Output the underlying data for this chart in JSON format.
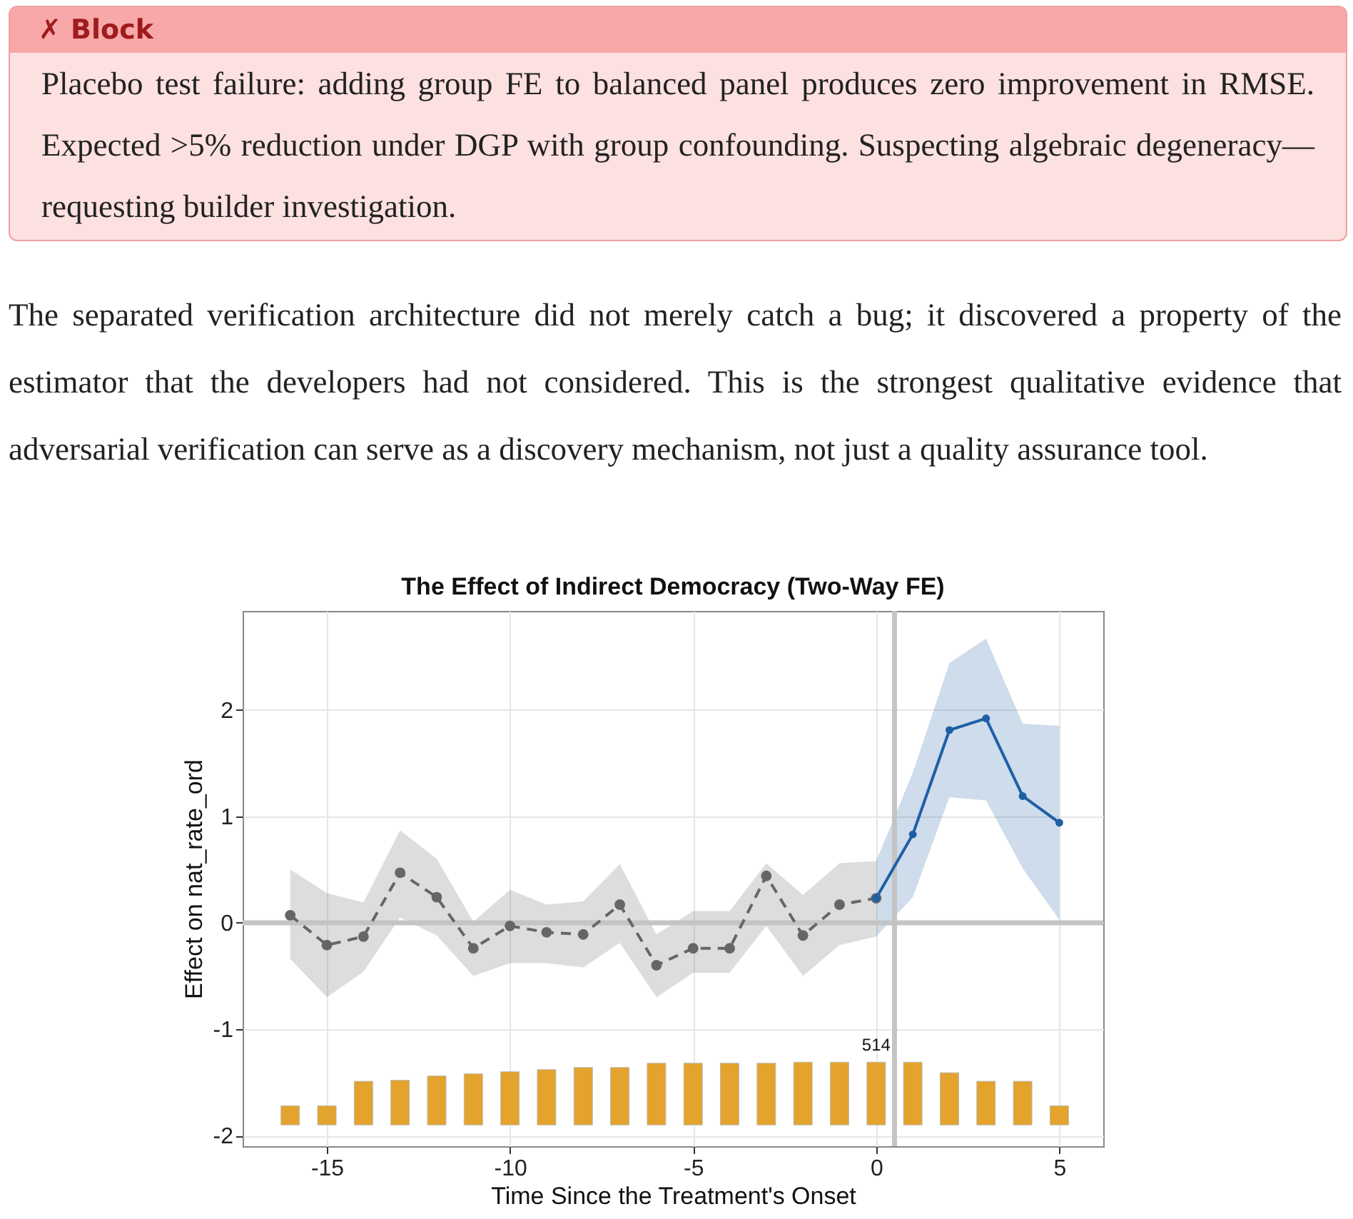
{
  "chart_data": {
    "type": "line",
    "title": "The Effect of Indirect Democracy (Two-Way FE)",
    "xlabel": "Time Since the Treatment's Onset",
    "ylabel": "Effect on nat_rate_ord",
    "xlim": [
      -17.3,
      6.2
    ],
    "xticks": [
      -15,
      -10,
      -5,
      0,
      5
    ],
    "ylim": [
      -2.1,
      2.93
    ],
    "yticks": [
      -2,
      -1,
      0,
      1,
      2
    ],
    "grid": true,
    "marker": "circle",
    "ref_lines": [
      {
        "axis": "y",
        "value": 0,
        "color": "#c4c4c4"
      },
      {
        "axis": "x",
        "value": 0.5,
        "color": "#c4c4c4"
      }
    ],
    "series": [
      {
        "type": "bar",
        "color": "#e3a32c",
        "x": [
          -16,
          -15,
          -14,
          -13,
          -12,
          -11,
          -10,
          -9,
          -8,
          -7,
          -6,
          -5,
          -4,
          -3,
          -2,
          -1,
          0,
          1,
          2,
          3,
          4,
          5
        ],
        "base": [
          -1.9,
          -1.9,
          -1.9,
          -1.9,
          -1.9,
          -1.9,
          -1.9,
          -1.9,
          -1.9,
          -1.9,
          -1.9,
          -1.9,
          -1.9,
          -1.9,
          -1.9,
          -1.9,
          -1.9,
          -1.9,
          -1.9,
          -1.9,
          -1.9,
          -1.9
        ],
        "values": [
          0.18,
          0.18,
          0.41,
          0.42,
          0.46,
          0.48,
          0.5,
          0.52,
          0.54,
          0.54,
          0.58,
          0.58,
          0.58,
          0.58,
          0.59,
          0.59,
          0.59,
          0.59,
          0.49,
          0.41,
          0.41,
          0.18
        ]
      },
      {
        "color": "#666666",
        "line_style": "dashed",
        "x": [
          -16,
          -15,
          -14,
          -13,
          -12,
          -11,
          -10,
          -9,
          -8,
          -7,
          -6,
          -5,
          -4,
          -3,
          -2,
          -1,
          0
        ],
        "values": [
          0.07,
          -0.21,
          -0.13,
          0.47,
          0.24,
          -0.24,
          -0.03,
          -0.09,
          -0.11,
          0.17,
          -0.4,
          -0.24,
          -0.24,
          0.44,
          -0.12,
          0.17,
          0.23
        ],
        "lower": [
          -0.34,
          -0.7,
          -0.46,
          0.05,
          -0.12,
          -0.5,
          -0.38,
          -0.38,
          -0.42,
          -0.19,
          -0.7,
          -0.47,
          -0.47,
          -0.03,
          -0.5,
          -0.21,
          -0.13
        ],
        "upper": [
          0.5,
          0.28,
          0.19,
          0.87,
          0.6,
          0.01,
          0.31,
          0.17,
          0.2,
          0.55,
          -0.11,
          0.11,
          0.11,
          0.56,
          0.26,
          0.56,
          0.58
        ]
      },
      {
        "color": "#1f5fa6",
        "line_style": "solid",
        "x": [
          0,
          1,
          2,
          3,
          4,
          5
        ],
        "values": [
          0.23,
          0.83,
          1.81,
          1.92,
          1.19,
          0.94
        ],
        "lower": [
          -0.13,
          0.24,
          1.18,
          1.15,
          0.51,
          0.03
        ],
        "upper": [
          0.58,
          1.41,
          2.44,
          2.67,
          1.87,
          1.85
        ]
      }
    ],
    "annotations": [
      "✗ Block",
      "Placebo test failure: adding group FE to balanced panel produces zero improvement in RMSE. Expected >5% reduction under DGP with group confounding. Suspecting algebraic degeneracy—requesting builder investigation.",
      "The separated verification architecture did not merely catch a bug; it discovered a property of the estimator that the developers had not considered. This is the strongest qualitative evidence that adversarial verification can serve as a discovery mechanism, not just a quality assurance tool.",
      {
        "text": "514",
        "x": 0,
        "y": -1.31
      }
    ]
  }
}
